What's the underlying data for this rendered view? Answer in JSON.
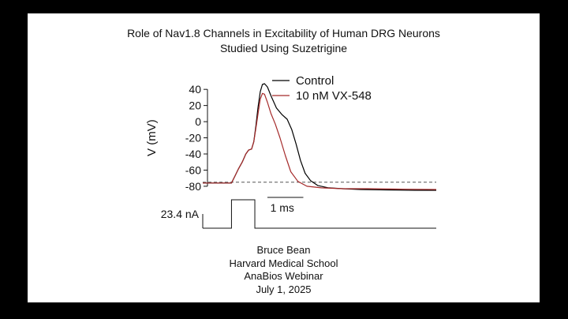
{
  "slide": {
    "title_line1": "Role of Nav1.8 Channels in Excitability of Human DRG Neurons",
    "title_line2": "Studied Using Suzetrigine",
    "credits": [
      "Bruce Bean",
      "Harvard Medical School",
      "AnaBios Webinar",
      "July 1, 2025"
    ],
    "background_color": "#000000",
    "slide_color": "#ffffff"
  },
  "chart_data": {
    "type": "line",
    "ylabel": "V (mV)",
    "ylim": [
      -85,
      48
    ],
    "yticks": [
      40,
      20,
      0,
      -20,
      -40,
      -60,
      -80
    ],
    "xlim": [
      -0.9,
      5.6
    ],
    "x_unit": "ms",
    "scale_bar": {
      "label": "1 ms",
      "length_ms": 1
    },
    "reference_line": {
      "y": -75,
      "style": "dashed",
      "color": "#555555"
    },
    "legend": {
      "position": "top-right"
    },
    "series": [
      {
        "name": "Control",
        "color": "#000000",
        "x": [
          -0.9,
          -0.1,
          0.0,
          0.1,
          0.2,
          0.3,
          0.38,
          0.46,
          0.52,
          0.58,
          0.64,
          0.7,
          0.76,
          0.82,
          0.9,
          1.0,
          1.15,
          1.3,
          1.45,
          1.58,
          1.7,
          1.82,
          1.95,
          2.1,
          2.3,
          2.6,
          3.0,
          3.5,
          4.2,
          5.0,
          5.6
        ],
        "y": [
          -76,
          -76,
          -67,
          -58,
          -50,
          -40,
          -35,
          -34,
          -25,
          -5,
          18,
          37,
          46,
          47,
          43,
          32,
          17,
          9,
          3,
          -10,
          -28,
          -48,
          -64,
          -73,
          -79,
          -82,
          -83,
          -84,
          -84.5,
          -85,
          -85
        ]
      },
      {
        "name": "10 nM VX-548",
        "color": "#a52a2a",
        "x": [
          -0.9,
          -0.1,
          0.0,
          0.1,
          0.2,
          0.3,
          0.38,
          0.46,
          0.52,
          0.58,
          0.64,
          0.7,
          0.76,
          0.82,
          0.9,
          1.0,
          1.12,
          1.25,
          1.4,
          1.55,
          1.75,
          2.0,
          2.4,
          3.0,
          3.7,
          4.5,
          5.6
        ],
        "y": [
          -76,
          -76,
          -67,
          -58,
          -50,
          -40,
          -35,
          -34,
          -25,
          -8,
          10,
          28,
          35,
          34,
          24,
          10,
          -3,
          -20,
          -42,
          -62,
          -74,
          -80,
          -82,
          -83,
          -83,
          -83.5,
          -84
        ]
      }
    ]
  },
  "stimulus": {
    "label": "23.4 nA",
    "pulse_start_ms": -0.1,
    "pulse_end_ms": 0.55
  }
}
